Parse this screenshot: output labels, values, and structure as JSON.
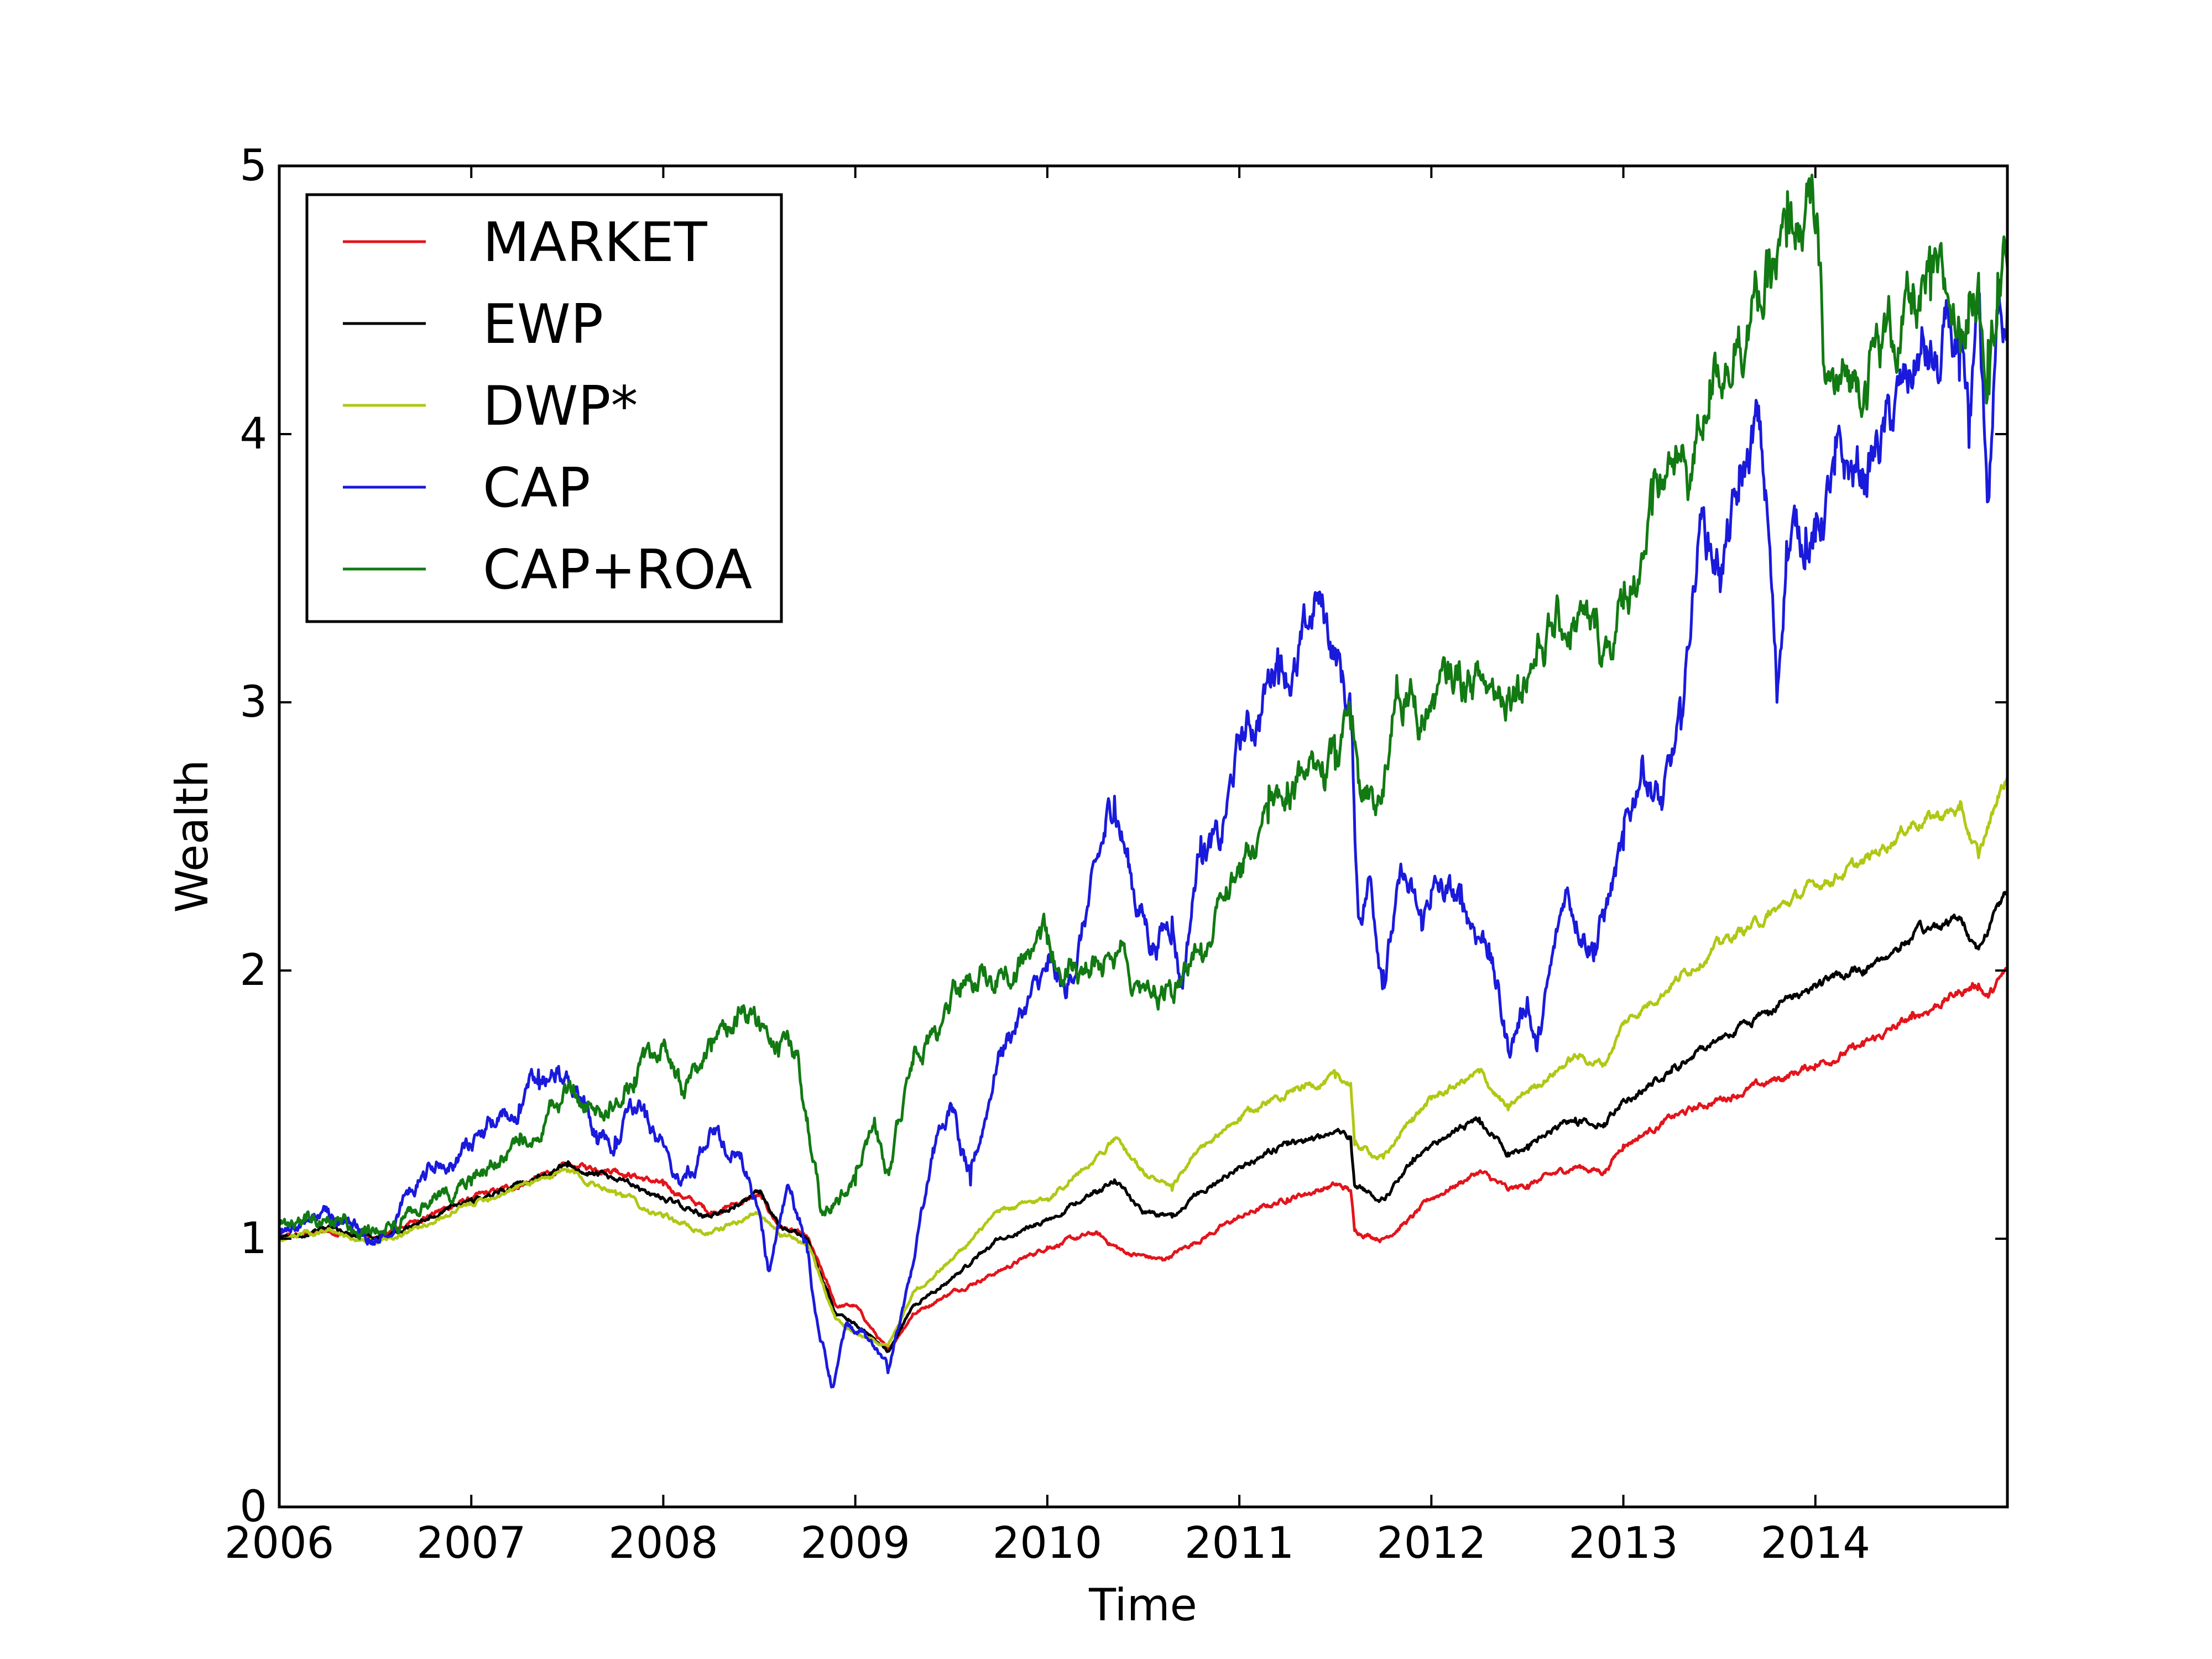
{
  "chart_data": {
    "type": "line",
    "title": "",
    "xlabel": "Time",
    "ylabel": "Wealth",
    "xlim": [
      2006,
      2015
    ],
    "ylim": [
      0,
      5
    ],
    "x_ticks": [
      "2006",
      "2007",
      "2008",
      "2009",
      "2010",
      "2011",
      "2012",
      "2013",
      "2014"
    ],
    "y_ticks": [
      "0",
      "1",
      "2",
      "3",
      "4",
      "5"
    ],
    "grid": false,
    "legend_position": "top-left",
    "series": [
      {
        "name": "MARKET",
        "color": "#e3141b",
        "points": [
          [
            2006.0,
            1.0
          ],
          [
            2006.25,
            1.03
          ],
          [
            2006.5,
            1.0
          ],
          [
            2006.75,
            1.08
          ],
          [
            2007.0,
            1.15
          ],
          [
            2007.25,
            1.2
          ],
          [
            2007.5,
            1.27
          ],
          [
            2007.75,
            1.26
          ],
          [
            2008.0,
            1.2
          ],
          [
            2008.25,
            1.1
          ],
          [
            2008.5,
            1.16
          ],
          [
            2008.6,
            1.05
          ],
          [
            2008.75,
            1.0
          ],
          [
            2008.9,
            0.75
          ],
          [
            2009.0,
            0.75
          ],
          [
            2009.17,
            0.58
          ],
          [
            2009.3,
            0.72
          ],
          [
            2009.5,
            0.8
          ],
          [
            2009.75,
            0.88
          ],
          [
            2010.0,
            0.97
          ],
          [
            2010.25,
            1.02
          ],
          [
            2010.4,
            0.95
          ],
          [
            2010.6,
            0.92
          ],
          [
            2010.75,
            0.98
          ],
          [
            2011.0,
            1.08
          ],
          [
            2011.25,
            1.15
          ],
          [
            2011.5,
            1.2
          ],
          [
            2011.58,
            1.18
          ],
          [
            2011.6,
            1.03
          ],
          [
            2011.75,
            1.0
          ],
          [
            2011.9,
            1.08
          ],
          [
            2012.0,
            1.15
          ],
          [
            2012.25,
            1.25
          ],
          [
            2012.4,
            1.18
          ],
          [
            2012.5,
            1.2
          ],
          [
            2012.75,
            1.27
          ],
          [
            2012.9,
            1.25
          ],
          [
            2013.0,
            1.35
          ],
          [
            2013.25,
            1.45
          ],
          [
            2013.5,
            1.52
          ],
          [
            2013.75,
            1.58
          ],
          [
            2013.9,
            1.62
          ],
          [
            2014.0,
            1.65
          ],
          [
            2014.25,
            1.72
          ],
          [
            2014.5,
            1.82
          ],
          [
            2014.75,
            1.92
          ],
          [
            2014.85,
            1.95
          ],
          [
            2014.9,
            1.9
          ],
          [
            2015.0,
            2.0
          ]
        ]
      },
      {
        "name": "EWP",
        "color": "#000000",
        "points": [
          [
            2006.0,
            1.0
          ],
          [
            2006.25,
            1.04
          ],
          [
            2006.5,
            1.0
          ],
          [
            2006.75,
            1.07
          ],
          [
            2007.0,
            1.15
          ],
          [
            2007.25,
            1.2
          ],
          [
            2007.5,
            1.27
          ],
          [
            2007.75,
            1.22
          ],
          [
            2008.0,
            1.15
          ],
          [
            2008.25,
            1.08
          ],
          [
            2008.5,
            1.17
          ],
          [
            2008.6,
            1.05
          ],
          [
            2008.75,
            1.0
          ],
          [
            2008.9,
            0.72
          ],
          [
            2009.0,
            0.68
          ],
          [
            2009.17,
            0.58
          ],
          [
            2009.3,
            0.75
          ],
          [
            2009.5,
            0.85
          ],
          [
            2009.75,
            1.0
          ],
          [
            2010.0,
            1.07
          ],
          [
            2010.25,
            1.18
          ],
          [
            2010.35,
            1.22
          ],
          [
            2010.5,
            1.1
          ],
          [
            2010.65,
            1.08
          ],
          [
            2010.75,
            1.15
          ],
          [
            2011.0,
            1.27
          ],
          [
            2011.25,
            1.35
          ],
          [
            2011.5,
            1.4
          ],
          [
            2011.58,
            1.38
          ],
          [
            2011.6,
            1.2
          ],
          [
            2011.75,
            1.15
          ],
          [
            2011.9,
            1.28
          ],
          [
            2012.0,
            1.35
          ],
          [
            2012.25,
            1.45
          ],
          [
            2012.4,
            1.32
          ],
          [
            2012.5,
            1.35
          ],
          [
            2012.75,
            1.45
          ],
          [
            2012.9,
            1.43
          ],
          [
            2013.0,
            1.52
          ],
          [
            2013.25,
            1.62
          ],
          [
            2013.5,
            1.75
          ],
          [
            2013.75,
            1.85
          ],
          [
            2014.0,
            1.95
          ],
          [
            2014.25,
            2.0
          ],
          [
            2014.5,
            2.12
          ],
          [
            2014.75,
            2.2
          ],
          [
            2014.85,
            2.08
          ],
          [
            2014.95,
            2.25
          ],
          [
            2015.0,
            2.3
          ]
        ]
      },
      {
        "name": "DWP*",
        "color": "#b0c814",
        "points": [
          [
            2006.0,
            1.0
          ],
          [
            2006.25,
            1.03
          ],
          [
            2006.5,
            0.98
          ],
          [
            2006.75,
            1.05
          ],
          [
            2007.0,
            1.13
          ],
          [
            2007.25,
            1.2
          ],
          [
            2007.5,
            1.25
          ],
          [
            2007.75,
            1.18
          ],
          [
            2008.0,
            1.08
          ],
          [
            2008.25,
            1.02
          ],
          [
            2008.5,
            1.1
          ],
          [
            2008.6,
            1.02
          ],
          [
            2008.75,
            0.98
          ],
          [
            2008.9,
            0.7
          ],
          [
            2009.0,
            0.65
          ],
          [
            2009.17,
            0.6
          ],
          [
            2009.3,
            0.8
          ],
          [
            2009.5,
            0.92
          ],
          [
            2009.75,
            1.1
          ],
          [
            2010.0,
            1.15
          ],
          [
            2010.25,
            1.3
          ],
          [
            2010.35,
            1.37
          ],
          [
            2010.5,
            1.25
          ],
          [
            2010.65,
            1.18
          ],
          [
            2010.75,
            1.3
          ],
          [
            2011.0,
            1.45
          ],
          [
            2011.25,
            1.55
          ],
          [
            2011.5,
            1.6
          ],
          [
            2011.58,
            1.58
          ],
          [
            2011.6,
            1.35
          ],
          [
            2011.75,
            1.3
          ],
          [
            2011.9,
            1.45
          ],
          [
            2012.0,
            1.52
          ],
          [
            2012.25,
            1.62
          ],
          [
            2012.4,
            1.48
          ],
          [
            2012.5,
            1.55
          ],
          [
            2012.75,
            1.68
          ],
          [
            2012.9,
            1.65
          ],
          [
            2013.0,
            1.8
          ],
          [
            2013.25,
            1.95
          ],
          [
            2013.5,
            2.1
          ],
          [
            2013.75,
            2.2
          ],
          [
            2014.0,
            2.32
          ],
          [
            2014.25,
            2.4
          ],
          [
            2014.5,
            2.55
          ],
          [
            2014.75,
            2.6
          ],
          [
            2014.85,
            2.42
          ],
          [
            2014.95,
            2.65
          ],
          [
            2015.0,
            2.72
          ]
        ]
      },
      {
        "name": "CAP",
        "color": "#1a1adc",
        "points": [
          [
            2006.0,
            1.02
          ],
          [
            2006.25,
            1.1
          ],
          [
            2006.5,
            1.0
          ],
          [
            2006.75,
            1.25
          ],
          [
            2007.0,
            1.35
          ],
          [
            2007.25,
            1.5
          ],
          [
            2007.35,
            1.63
          ],
          [
            2007.5,
            1.6
          ],
          [
            2007.65,
            1.4
          ],
          [
            2007.75,
            1.38
          ],
          [
            2007.9,
            1.5
          ],
          [
            2008.0,
            1.35
          ],
          [
            2008.1,
            1.22
          ],
          [
            2008.25,
            1.4
          ],
          [
            2008.4,
            1.3
          ],
          [
            2008.5,
            1.1
          ],
          [
            2008.55,
            0.88
          ],
          [
            2008.65,
            1.2
          ],
          [
            2008.75,
            0.95
          ],
          [
            2008.8,
            0.7
          ],
          [
            2008.88,
            0.45
          ],
          [
            2008.95,
            0.68
          ],
          [
            2009.05,
            0.65
          ],
          [
            2009.17,
            0.5
          ],
          [
            2009.3,
            0.9
          ],
          [
            2009.4,
            1.3
          ],
          [
            2009.5,
            1.5
          ],
          [
            2009.6,
            1.2
          ],
          [
            2009.75,
            1.7
          ],
          [
            2010.0,
            2.0
          ],
          [
            2010.1,
            1.9
          ],
          [
            2010.3,
            2.5
          ],
          [
            2010.35,
            2.65
          ],
          [
            2010.45,
            2.3
          ],
          [
            2010.55,
            2.1
          ],
          [
            2010.65,
            2.2
          ],
          [
            2010.7,
            1.95
          ],
          [
            2010.8,
            2.5
          ],
          [
            2010.9,
            2.45
          ],
          [
            2011.0,
            2.85
          ],
          [
            2011.1,
            2.95
          ],
          [
            2011.2,
            3.2
          ],
          [
            2011.3,
            3.1
          ],
          [
            2011.4,
            3.38
          ],
          [
            2011.45,
            3.3
          ],
          [
            2011.5,
            3.2
          ],
          [
            2011.58,
            2.95
          ],
          [
            2011.62,
            2.2
          ],
          [
            2011.68,
            2.35
          ],
          [
            2011.75,
            2.0
          ],
          [
            2011.85,
            2.35
          ],
          [
            2011.95,
            2.15
          ],
          [
            2012.0,
            2.3
          ],
          [
            2012.15,
            2.25
          ],
          [
            2012.3,
            2.1
          ],
          [
            2012.4,
            1.7
          ],
          [
            2012.5,
            1.9
          ],
          [
            2012.55,
            1.7
          ],
          [
            2012.7,
            2.3
          ],
          [
            2012.85,
            2.1
          ],
          [
            2013.0,
            2.45
          ],
          [
            2013.1,
            2.8
          ],
          [
            2013.2,
            2.6
          ],
          [
            2013.3,
            2.9
          ],
          [
            2013.4,
            3.7
          ],
          [
            2013.5,
            3.5
          ],
          [
            2013.6,
            3.75
          ],
          [
            2013.7,
            4.05
          ],
          [
            2013.75,
            3.7
          ],
          [
            2013.8,
            3.0
          ],
          [
            2013.85,
            3.6
          ],
          [
            2013.95,
            3.65
          ],
          [
            2014.0,
            3.6
          ],
          [
            2014.1,
            3.85
          ],
          [
            2014.25,
            3.85
          ],
          [
            2014.4,
            4.05
          ],
          [
            2014.55,
            4.3
          ],
          [
            2014.65,
            4.2
          ],
          [
            2014.7,
            4.4
          ],
          [
            2014.75,
            4.2
          ],
          [
            2014.8,
            3.95
          ],
          [
            2014.85,
            4.45
          ],
          [
            2014.9,
            3.75
          ],
          [
            2014.95,
            4.45
          ],
          [
            2015.0,
            4.5
          ]
        ]
      },
      {
        "name": "CAP+ROA",
        "color": "#127a12",
        "points": [
          [
            2006.0,
            1.05
          ],
          [
            2006.25,
            1.08
          ],
          [
            2006.5,
            1.02
          ],
          [
            2006.75,
            1.12
          ],
          [
            2007.0,
            1.2
          ],
          [
            2007.25,
            1.35
          ],
          [
            2007.5,
            1.55
          ],
          [
            2007.6,
            1.5
          ],
          [
            2007.75,
            1.5
          ],
          [
            2007.85,
            1.6
          ],
          [
            2008.0,
            1.72
          ],
          [
            2008.1,
            1.55
          ],
          [
            2008.25,
            1.7
          ],
          [
            2008.4,
            1.85
          ],
          [
            2008.5,
            1.8
          ],
          [
            2008.6,
            1.68
          ],
          [
            2008.7,
            1.7
          ],
          [
            2008.75,
            1.45
          ],
          [
            2008.82,
            1.1
          ],
          [
            2008.9,
            1.15
          ],
          [
            2009.0,
            1.2
          ],
          [
            2009.1,
            1.45
          ],
          [
            2009.17,
            1.25
          ],
          [
            2009.3,
            1.65
          ],
          [
            2009.45,
            1.8
          ],
          [
            2009.55,
            1.95
          ],
          [
            2009.75,
            2.0
          ],
          [
            2010.0,
            2.1
          ],
          [
            2010.1,
            2.0
          ],
          [
            2010.25,
            2.05
          ],
          [
            2010.4,
            2.1
          ],
          [
            2010.5,
            1.95
          ],
          [
            2010.65,
            1.9
          ],
          [
            2010.8,
            2.1
          ],
          [
            2011.0,
            2.4
          ],
          [
            2011.15,
            2.55
          ],
          [
            2011.25,
            2.7
          ],
          [
            2011.4,
            2.75
          ],
          [
            2011.5,
            2.75
          ],
          [
            2011.58,
            2.9
          ],
          [
            2011.62,
            2.7
          ],
          [
            2011.75,
            2.65
          ],
          [
            2011.82,
            3.1
          ],
          [
            2011.95,
            2.95
          ],
          [
            2012.0,
            3.0
          ],
          [
            2012.15,
            3.1
          ],
          [
            2012.3,
            3.05
          ],
          [
            2012.45,
            3.1
          ],
          [
            2012.6,
            3.25
          ],
          [
            2012.75,
            3.3
          ],
          [
            2012.9,
            3.2
          ],
          [
            2013.0,
            3.35
          ],
          [
            2013.15,
            3.7
          ],
          [
            2013.25,
            3.9
          ],
          [
            2013.35,
            3.85
          ],
          [
            2013.45,
            4.2
          ],
          [
            2013.6,
            4.4
          ],
          [
            2013.75,
            4.55
          ],
          [
            2013.85,
            4.7
          ],
          [
            2013.95,
            4.85
          ],
          [
            2014.0,
            4.75
          ],
          [
            2014.05,
            4.2
          ],
          [
            2014.1,
            4.15
          ],
          [
            2014.2,
            4.2
          ],
          [
            2014.35,
            4.35
          ],
          [
            2014.5,
            4.45
          ],
          [
            2014.6,
            4.5
          ],
          [
            2014.7,
            4.48
          ],
          [
            2014.75,
            4.4
          ],
          [
            2014.8,
            4.52
          ],
          [
            2014.85,
            4.6
          ],
          [
            2014.9,
            4.35
          ],
          [
            2014.95,
            4.6
          ],
          [
            2015.0,
            4.62
          ]
        ]
      }
    ]
  }
}
